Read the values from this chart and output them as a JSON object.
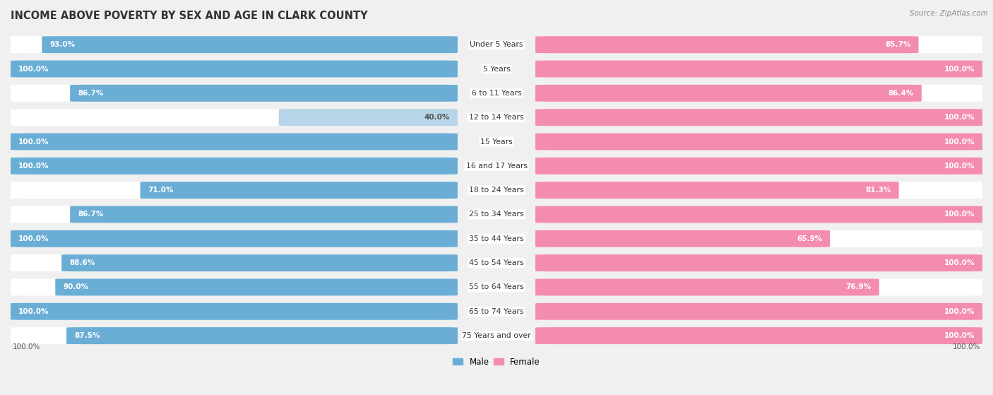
{
  "title": "INCOME ABOVE POVERTY BY SEX AND AGE IN CLARK COUNTY",
  "source": "Source: ZipAtlas.com",
  "categories": [
    "Under 5 Years",
    "5 Years",
    "6 to 11 Years",
    "12 to 14 Years",
    "15 Years",
    "16 and 17 Years",
    "18 to 24 Years",
    "25 to 34 Years",
    "35 to 44 Years",
    "45 to 54 Years",
    "55 to 64 Years",
    "65 to 74 Years",
    "75 Years and over"
  ],
  "male_values": [
    93.0,
    100.0,
    86.7,
    40.0,
    100.0,
    100.0,
    71.0,
    86.7,
    100.0,
    88.6,
    90.0,
    100.0,
    87.5
  ],
  "female_values": [
    85.7,
    100.0,
    86.4,
    100.0,
    100.0,
    100.0,
    81.3,
    100.0,
    65.9,
    100.0,
    76.9,
    100.0,
    100.0
  ],
  "male_color": "#6aaed6",
  "female_color": "#f48cad",
  "male_color_light": "#b8d4e8",
  "female_color_light": "#f8c4d4",
  "bg_row_color": "#e8e8e8",
  "background_color": "#f0f0f0",
  "title_fontsize": 10.5,
  "label_fontsize": 7.8,
  "value_fontsize": 7.5,
  "max_value": 100.0
}
